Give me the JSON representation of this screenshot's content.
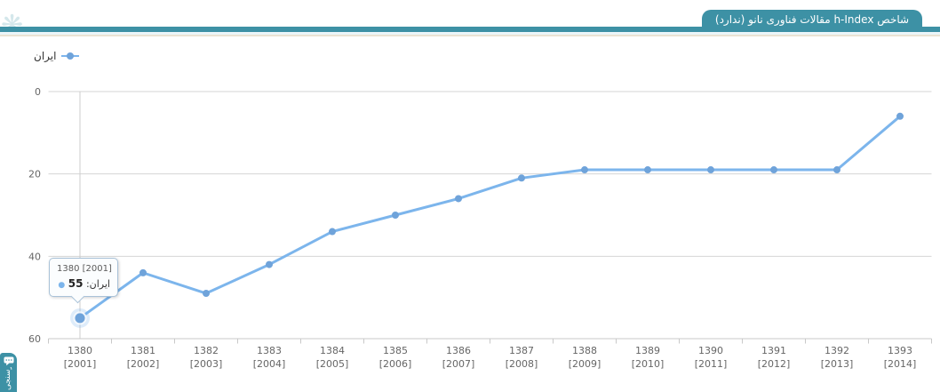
{
  "colors": {
    "teal": "#3d91a5",
    "line": "#7cb5ec",
    "marker": "#6fa3da",
    "halo": "rgba(124,181,236,0.25)",
    "gridline": "#d6d6d6",
    "axis_line": "#c9c9c9",
    "axis_label": "#666666"
  },
  "header": {
    "tab_title": "شاخص h-Index مقالات فناوری نانو (ندارد)"
  },
  "legend": {
    "series_label": "ایران"
  },
  "tooltip": {
    "header": "1380 [2001]",
    "series_label": "ایران",
    "value": "55",
    "point_index": 0
  },
  "side_tab": {
    "label": "نظرسنجی",
    "icon": "chat-bubble-icon"
  },
  "chart_data": {
    "type": "line",
    "title": "",
    "xlabel": "",
    "ylabel": "",
    "categories_jalali": [
      "1380",
      "1381",
      "1382",
      "1383",
      "1384",
      "1385",
      "1386",
      "1387",
      "1388",
      "1389",
      "1390",
      "1391",
      "1392",
      "1393"
    ],
    "categories_gregorian": [
      "[2001]",
      "[2002]",
      "[2003]",
      "[2004]",
      "[2005]",
      "[2006]",
      "[2007]",
      "[2008]",
      "[2009]",
      "[2010]",
      "[2011]",
      "[2012]",
      "[2013]",
      "[2014]"
    ],
    "series": [
      {
        "name": "ایران",
        "values": [
          55,
          44,
          49,
          42,
          34,
          30,
          26,
          21,
          19,
          19,
          19,
          19,
          19,
          6
        ]
      }
    ],
    "yaxis": {
      "min": 0,
      "max": 60,
      "ticks": [
        0,
        20,
        40,
        60
      ],
      "reversed": true
    },
    "grid": true,
    "legend_position": "top-left",
    "highlighted_point_index": 0,
    "crosshair_index": 0
  }
}
